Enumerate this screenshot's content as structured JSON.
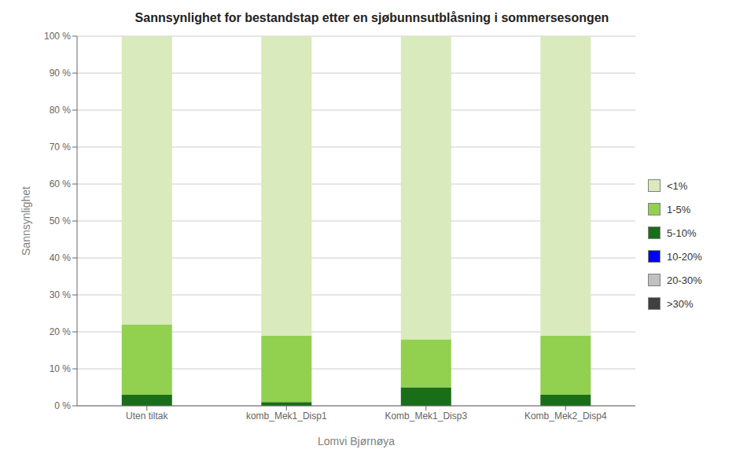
{
  "chart_data": {
    "type": "bar",
    "title": "Sannsynlighet for bestandstap etter en sjøbunnsutblåsning i sommersesongen",
    "xlabel": "Lomvi Bjørnøya",
    "ylabel": "Sannsynlighet",
    "categories": [
      "Uten tiltak",
      "komb_Mek1_Disp1",
      "Komb_Mek1_Disp3",
      "Komb_Mek2_Disp4"
    ],
    "series": [
      {
        "name": "<1%",
        "color": "#d9eabc",
        "values": [
          78,
          81,
          82,
          81
        ]
      },
      {
        "name": "1-5%",
        "color": "#92d050",
        "values": [
          19,
          18,
          13,
          16
        ]
      },
      {
        "name": "5-10%",
        "color": "#1a6e1a",
        "values": [
          3,
          1,
          5,
          3
        ]
      },
      {
        "name": "10-20%",
        "color": "#0000ff",
        "values": [
          0,
          0,
          0,
          0
        ]
      },
      {
        "name": "20-30%",
        "color": "#c0c0c0",
        "values": [
          0,
          0,
          0,
          0
        ]
      },
      {
        "name": ">30%",
        "color": "#404040",
        "values": [
          0,
          0,
          0,
          0
        ]
      }
    ],
    "stacked": true,
    "ylim": [
      0,
      100
    ],
    "yticks": [
      {
        "value": 0,
        "label": "0 %"
      },
      {
        "value": 10,
        "label": "10 %"
      },
      {
        "value": 20,
        "label": "20 %"
      },
      {
        "value": 30,
        "label": "30 %"
      },
      {
        "value": 40,
        "label": "40 %"
      },
      {
        "value": 50,
        "label": "50 %"
      },
      {
        "value": 60,
        "label": "60 %"
      },
      {
        "value": 70,
        "label": "70 %"
      },
      {
        "value": 80,
        "label": "80 %"
      },
      {
        "value": 90,
        "label": "90 %"
      },
      {
        "value": 100,
        "label": "100 %"
      }
    ],
    "grid": true,
    "legend": "right"
  }
}
